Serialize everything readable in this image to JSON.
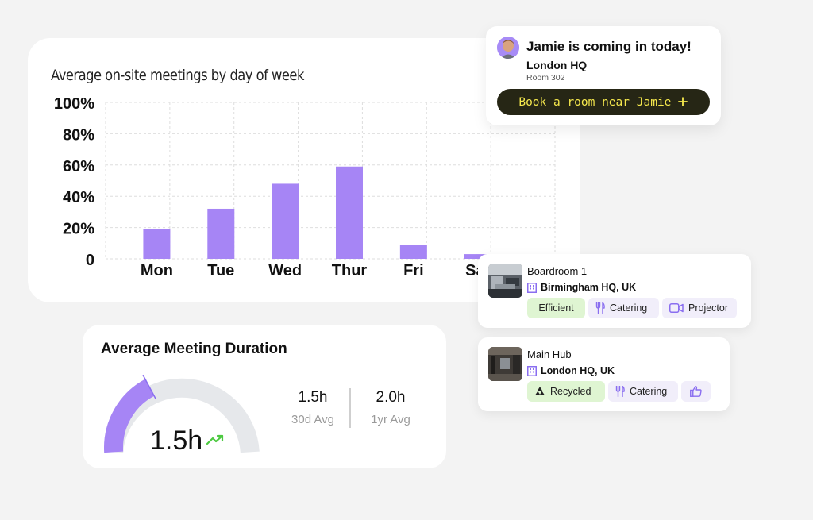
{
  "chart_data": {
    "type": "bar",
    "title": "Average on-site meetings by day of week",
    "categories": [
      "Mon",
      "Tue",
      "Wed",
      "Thur",
      "Fri",
      "Sat"
    ],
    "values": [
      19,
      32,
      48,
      59,
      9,
      3
    ],
    "y_ticks": [
      "100%",
      "80%",
      "60%",
      "40%",
      "20%",
      "0"
    ],
    "ylim": [
      0,
      100
    ],
    "grid": true,
    "colors": {
      "bar": "#a685f5"
    }
  },
  "duration": {
    "title": "Average Meeting Duration",
    "gauge_value": "1.5h",
    "gauge_fraction": 0.35,
    "trend_icon": "trend-up-icon",
    "stats": [
      {
        "value": "1.5h",
        "label": "30d Avg"
      },
      {
        "value": "2.0h",
        "label": "1yr Avg"
      }
    ],
    "colors": {
      "fill": "#a685f5",
      "track": "#e6e8eb",
      "trend": "#4cc940"
    }
  },
  "notification": {
    "title": "Jamie is coming in today!",
    "location": "London HQ",
    "room": "Room 302",
    "button_label": "Book a room near Jamie",
    "button_icon": "+"
  },
  "rooms": [
    {
      "name": "Boardroom 1",
      "location": "Birmingham HQ, UK",
      "tags": [
        {
          "label": "Efficient",
          "icon": "",
          "style": "green"
        },
        {
          "label": "Catering",
          "icon": "cutlery-icon",
          "style": "purple"
        },
        {
          "label": "Projector",
          "icon": "video-camera-icon",
          "style": "purple"
        }
      ]
    },
    {
      "name": "Main Hub",
      "location": "London HQ, UK",
      "tags": [
        {
          "label": "Recycled",
          "icon": "recycle-icon",
          "style": "green"
        },
        {
          "label": "Catering",
          "icon": "cutlery-icon",
          "style": "purple"
        },
        {
          "label": "",
          "icon": "thumbs-up-icon",
          "style": "purple"
        }
      ]
    }
  ],
  "colors": {
    "accent": "#a685f5",
    "button_bg": "#262615",
    "button_text": "#f5e84d",
    "green_tag": "#dff5d2",
    "purple_tag": "#f1eefa"
  }
}
